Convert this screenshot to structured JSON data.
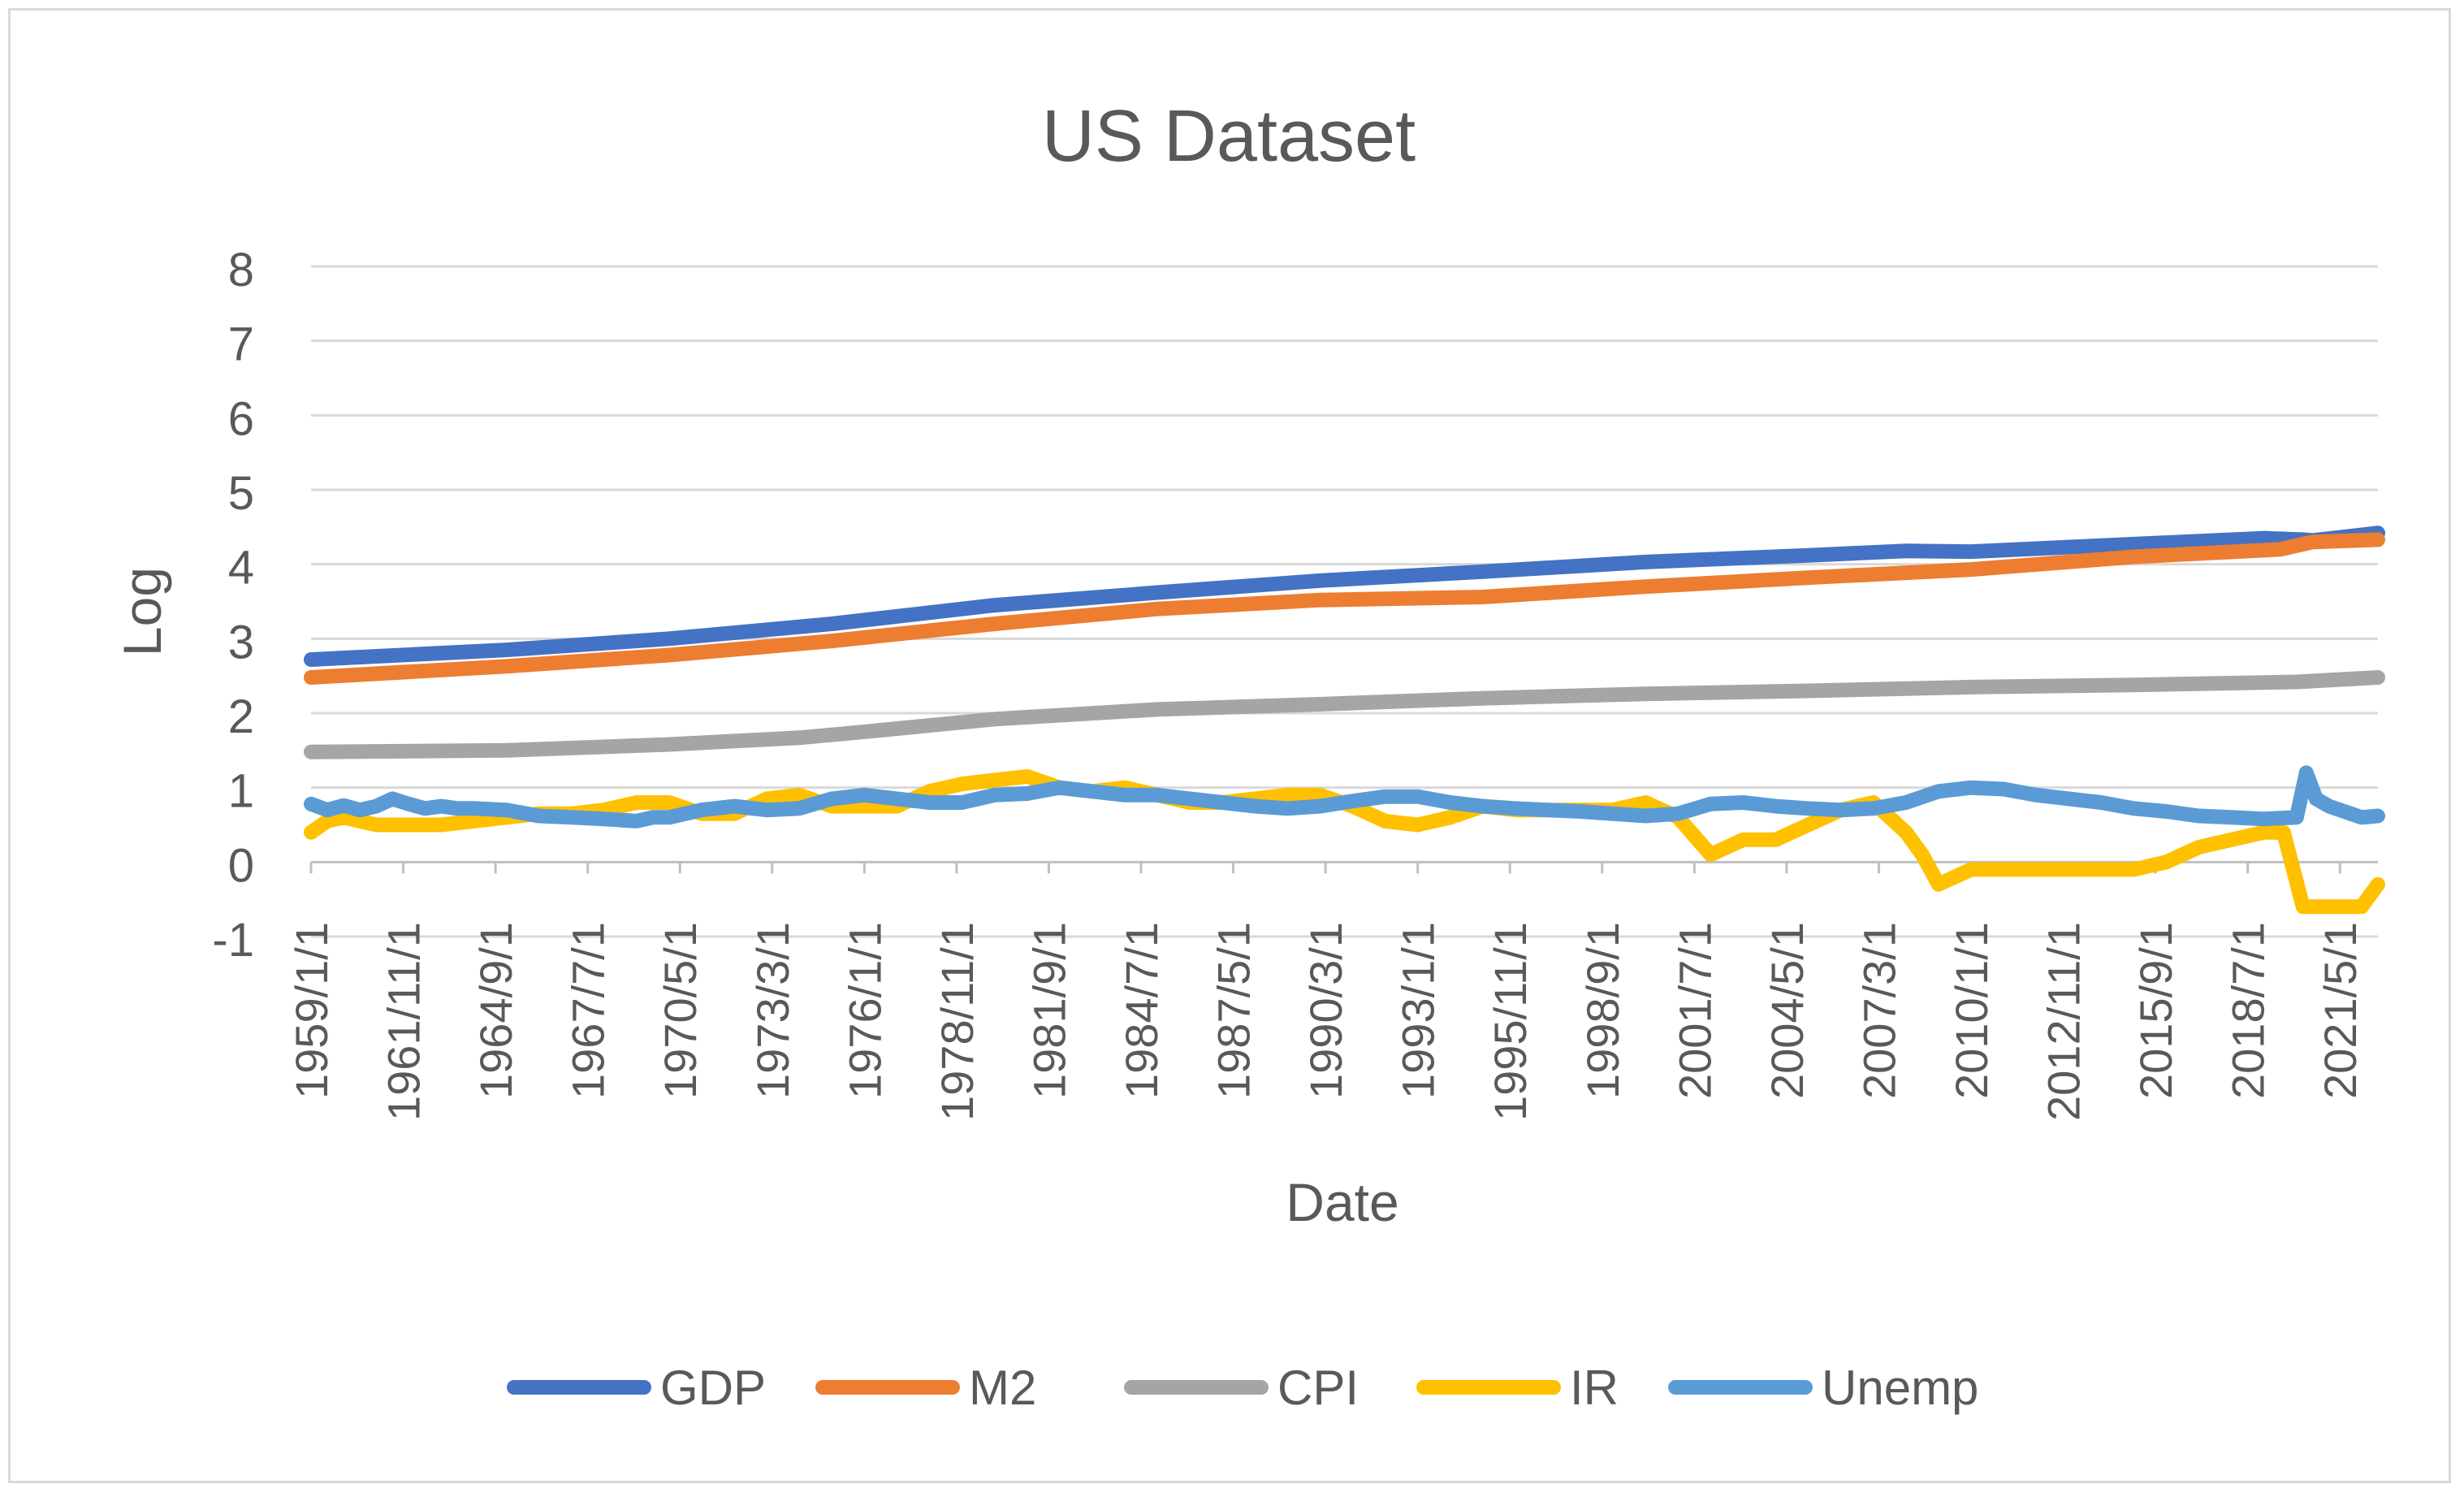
{
  "chart_data": {
    "type": "line",
    "title": "US Dataset",
    "xlabel": "Date",
    "ylabel": "Log",
    "ylim": [
      -1,
      8
    ],
    "y_ticks": [
      "-1",
      "0",
      "1",
      "2",
      "3",
      "4",
      "5",
      "6",
      "7",
      "8"
    ],
    "x_start_year": 1959,
    "x_end_year": 2022.5,
    "x_tick_labels": [
      "1959/1/1",
      "1961/11/1",
      "1964/9/1",
      "1967/7/1",
      "1970/5/1",
      "1973/3/1",
      "1976/1/1",
      "1978/11/1",
      "1981/9/1",
      "1984/7/1",
      "1987/5/1",
      "1990/3/1",
      "1993/1/1",
      "1995/11/1",
      "1998/9/1",
      "2001/7/1",
      "2004/5/1",
      "2007/3/1",
      "2010/1/1",
      "2012/11/1",
      "2015/9/1",
      "2018/7/1",
      "2021/5/1"
    ],
    "grid": true,
    "legend_position": "bottom",
    "series": [
      {
        "name": "GDP",
        "color": "#4472c4",
        "x": [
          1959,
          1965,
          1970,
          1975,
          1980,
          1985,
          1990,
          1995,
          2000,
          2005,
          2008,
          2010,
          2015,
          2019,
          2020.2,
          2020.5,
          2022.5
        ],
        "values": [
          2.72,
          2.85,
          3.0,
          3.2,
          3.45,
          3.62,
          3.78,
          3.9,
          4.03,
          4.12,
          4.18,
          4.17,
          4.27,
          4.35,
          4.33,
          4.32,
          4.42
        ]
      },
      {
        "name": "M2",
        "color": "#ed7d31",
        "x": [
          1959,
          1965,
          1970,
          1975,
          1980,
          1985,
          1990,
          1995,
          2000,
          2005,
          2010,
          2015,
          2019.5,
          2020.5,
          2022.5
        ],
        "values": [
          2.48,
          2.63,
          2.78,
          2.97,
          3.2,
          3.4,
          3.52,
          3.56,
          3.7,
          3.82,
          3.93,
          4.1,
          4.2,
          4.3,
          4.33
        ]
      },
      {
        "name": "CPI",
        "color": "#a5a5a5",
        "x": [
          1959,
          1965,
          1970,
          1974,
          1976,
          1980,
          1985,
          1990,
          1995,
          2000,
          2005,
          2010,
          2015,
          2020,
          2022.5
        ],
        "values": [
          1.48,
          1.5,
          1.58,
          1.67,
          1.75,
          1.92,
          2.05,
          2.12,
          2.2,
          2.26,
          2.3,
          2.35,
          2.38,
          2.42,
          2.48
        ]
      },
      {
        "name": "IR",
        "color": "#ffc000",
        "x": [
          1959,
          1959.5,
          1960,
          1961,
          1962,
          1963,
          1964,
          1965,
          1966,
          1967,
          1968,
          1969,
          1970,
          1971,
          1972,
          1973,
          1974,
          1975,
          1976,
          1977,
          1978,
          1979,
          1980,
          1981,
          1982,
          1983,
          1984,
          1985,
          1986,
          1987,
          1988,
          1989,
          1990,
          1991,
          1992,
          1993,
          1994,
          1995,
          1996,
          1997,
          1998,
          1999,
          2000,
          2001,
          2002,
          2003,
          2004,
          2005,
          2006,
          2007,
          2008,
          2008.5,
          2009,
          2010,
          2011,
          2012,
          2013,
          2014,
          2015,
          2016,
          2017,
          2018,
          2019,
          2019.6,
          2020.2,
          2021,
          2022,
          2022.5
        ],
        "values": [
          0.4,
          0.55,
          0.6,
          0.5,
          0.5,
          0.5,
          0.55,
          0.6,
          0.65,
          0.65,
          0.7,
          0.8,
          0.8,
          0.65,
          0.65,
          0.85,
          0.9,
          0.75,
          0.75,
          0.75,
          0.95,
          1.05,
          1.1,
          1.15,
          1.0,
          0.95,
          1.0,
          0.9,
          0.8,
          0.8,
          0.85,
          0.9,
          0.9,
          0.75,
          0.55,
          0.5,
          0.6,
          0.75,
          0.7,
          0.7,
          0.7,
          0.7,
          0.8,
          0.6,
          0.1,
          0.3,
          0.3,
          0.5,
          0.7,
          0.8,
          0.4,
          0.1,
          -0.3,
          -0.1,
          -0.1,
          -0.1,
          -0.1,
          -0.1,
          -0.1,
          0.0,
          0.2,
          0.3,
          0.4,
          0.4,
          -0.6,
          -0.6,
          -0.6,
          -0.3
        ]
      },
      {
        "name": "Unemp",
        "color": "#5b9bd5",
        "x": [
          1959,
          1959.5,
          1960,
          1960.5,
          1961,
          1961.5,
          1962,
          1962.5,
          1963,
          1963.5,
          1964,
          1965,
          1966,
          1967,
          1968,
          1969,
          1969.5,
          1970,
          1971,
          1972,
          1973,
          1974,
          1975,
          1976,
          1977,
          1978,
          1979,
          1980,
          1981,
          1982,
          1983,
          1984,
          1985,
          1986,
          1987,
          1988,
          1989,
          1990,
          1991,
          1992,
          1993,
          1994,
          1995,
          1996,
          1997,
          1998,
          1999,
          2000,
          2001,
          2002,
          2003,
          2004,
          2005,
          2006,
          2007,
          2008,
          2009,
          2010,
          2011,
          2012,
          2013,
          2014,
          2015,
          2016,
          2017,
          2018,
          2019,
          2020,
          2020.3,
          2020.6,
          2021,
          2022,
          2022.5
        ],
        "values": [
          0.78,
          0.7,
          0.76,
          0.7,
          0.75,
          0.85,
          0.78,
          0.72,
          0.75,
          0.72,
          0.72,
          0.7,
          0.62,
          0.6,
          0.58,
          0.55,
          0.6,
          0.6,
          0.7,
          0.75,
          0.7,
          0.72,
          0.85,
          0.9,
          0.85,
          0.8,
          0.8,
          0.9,
          0.92,
          1.0,
          0.95,
          0.9,
          0.9,
          0.85,
          0.8,
          0.75,
          0.72,
          0.75,
          0.82,
          0.88,
          0.88,
          0.8,
          0.75,
          0.72,
          0.7,
          0.68,
          0.65,
          0.62,
          0.65,
          0.78,
          0.8,
          0.75,
          0.72,
          0.7,
          0.72,
          0.8,
          0.95,
          1.0,
          0.98,
          0.9,
          0.85,
          0.8,
          0.72,
          0.68,
          0.62,
          0.6,
          0.58,
          0.6,
          1.2,
          0.85,
          0.75,
          0.6,
          0.62
        ]
      }
    ]
  }
}
